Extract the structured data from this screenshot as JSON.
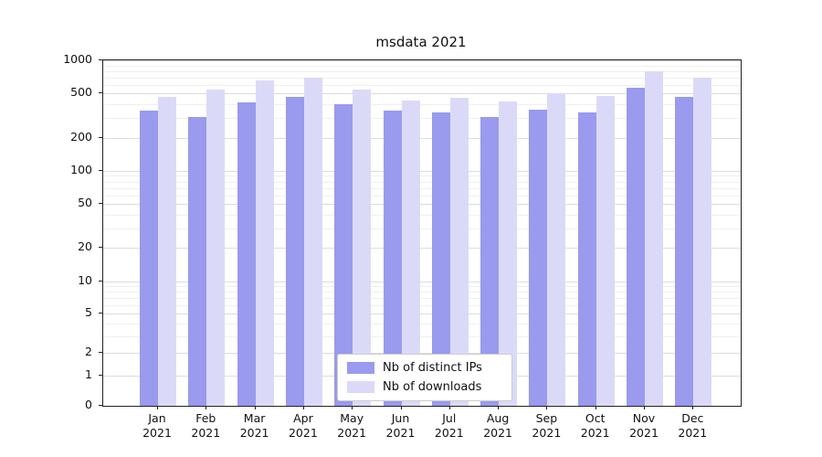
{
  "title": "msdata 2021",
  "legend": {
    "items": [
      {
        "label": "Nb of distinct IPs",
        "color": "#9a9aee"
      },
      {
        "label": "Nb of downloads",
        "color": "#dadaf8"
      }
    ]
  },
  "chart_data": {
    "type": "bar",
    "title": "msdata 2021",
    "categories": [
      "Jan 2021",
      "Feb 2021",
      "Mar 2021",
      "Apr 2021",
      "May 2021",
      "Jun 2021",
      "Jul 2021",
      "Aug 2021",
      "Sep 2021",
      "Oct 2021",
      "Nov 2021",
      "Dec 2021"
    ],
    "series": [
      {
        "name": "Nb of distinct IPs",
        "color": "#9a9aee",
        "values": [
          350,
          310,
          420,
          470,
          400,
          350,
          335,
          310,
          360,
          340,
          570,
          470
        ]
      },
      {
        "name": "Nb of downloads",
        "color": "#dadaf8",
        "values": [
          470,
          540,
          660,
          700,
          540,
          430,
          460,
          425,
          500,
          475,
          800,
          700
        ]
      }
    ],
    "yscale": "symlog",
    "ylim": [
      0,
      1000
    ],
    "yticks": [
      0,
      1,
      2,
      5,
      10,
      20,
      50,
      100,
      200,
      500,
      1000
    ],
    "minor_ticks": [
      3,
      4,
      6,
      7,
      8,
      9,
      30,
      40,
      60,
      70,
      80,
      90,
      300,
      400,
      600,
      700,
      800,
      900
    ],
    "grid": "both",
    "legend_position": "lower center"
  }
}
